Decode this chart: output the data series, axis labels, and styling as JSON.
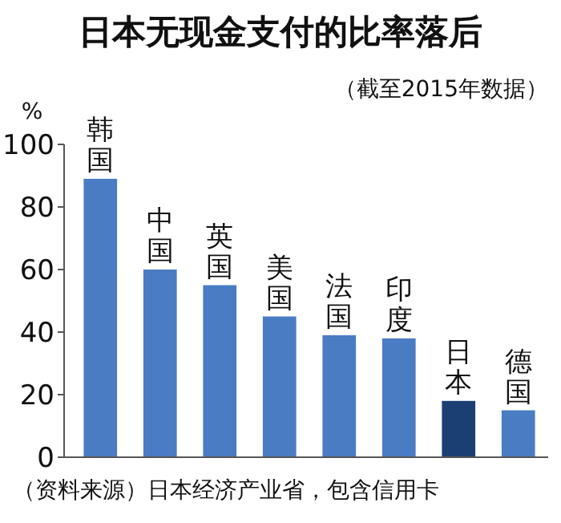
{
  "chart_data": {
    "type": "bar",
    "title": "日本无现金支付的比率落后",
    "subtitle": "（截至2015年数据）",
    "ylabel": "%",
    "categories": [
      "韩国",
      "中国",
      "英国",
      "美国",
      "法国",
      "印度",
      "日本",
      "德国"
    ],
    "values": [
      89,
      60,
      55,
      45,
      39,
      38,
      18,
      15
    ],
    "colors": [
      "#4a7cc4",
      "#4a7cc4",
      "#4a7cc4",
      "#4a7cc4",
      "#4a7cc4",
      "#4a7cc4",
      "#1c3f73",
      "#4a7cc4"
    ],
    "ylim": [
      0,
      100
    ],
    "yticks": [
      0,
      20,
      40,
      60,
      80,
      100
    ],
    "grid": false,
    "annotations": [
      "（资料来源）日本经济产业省，包含信用卡"
    ]
  }
}
